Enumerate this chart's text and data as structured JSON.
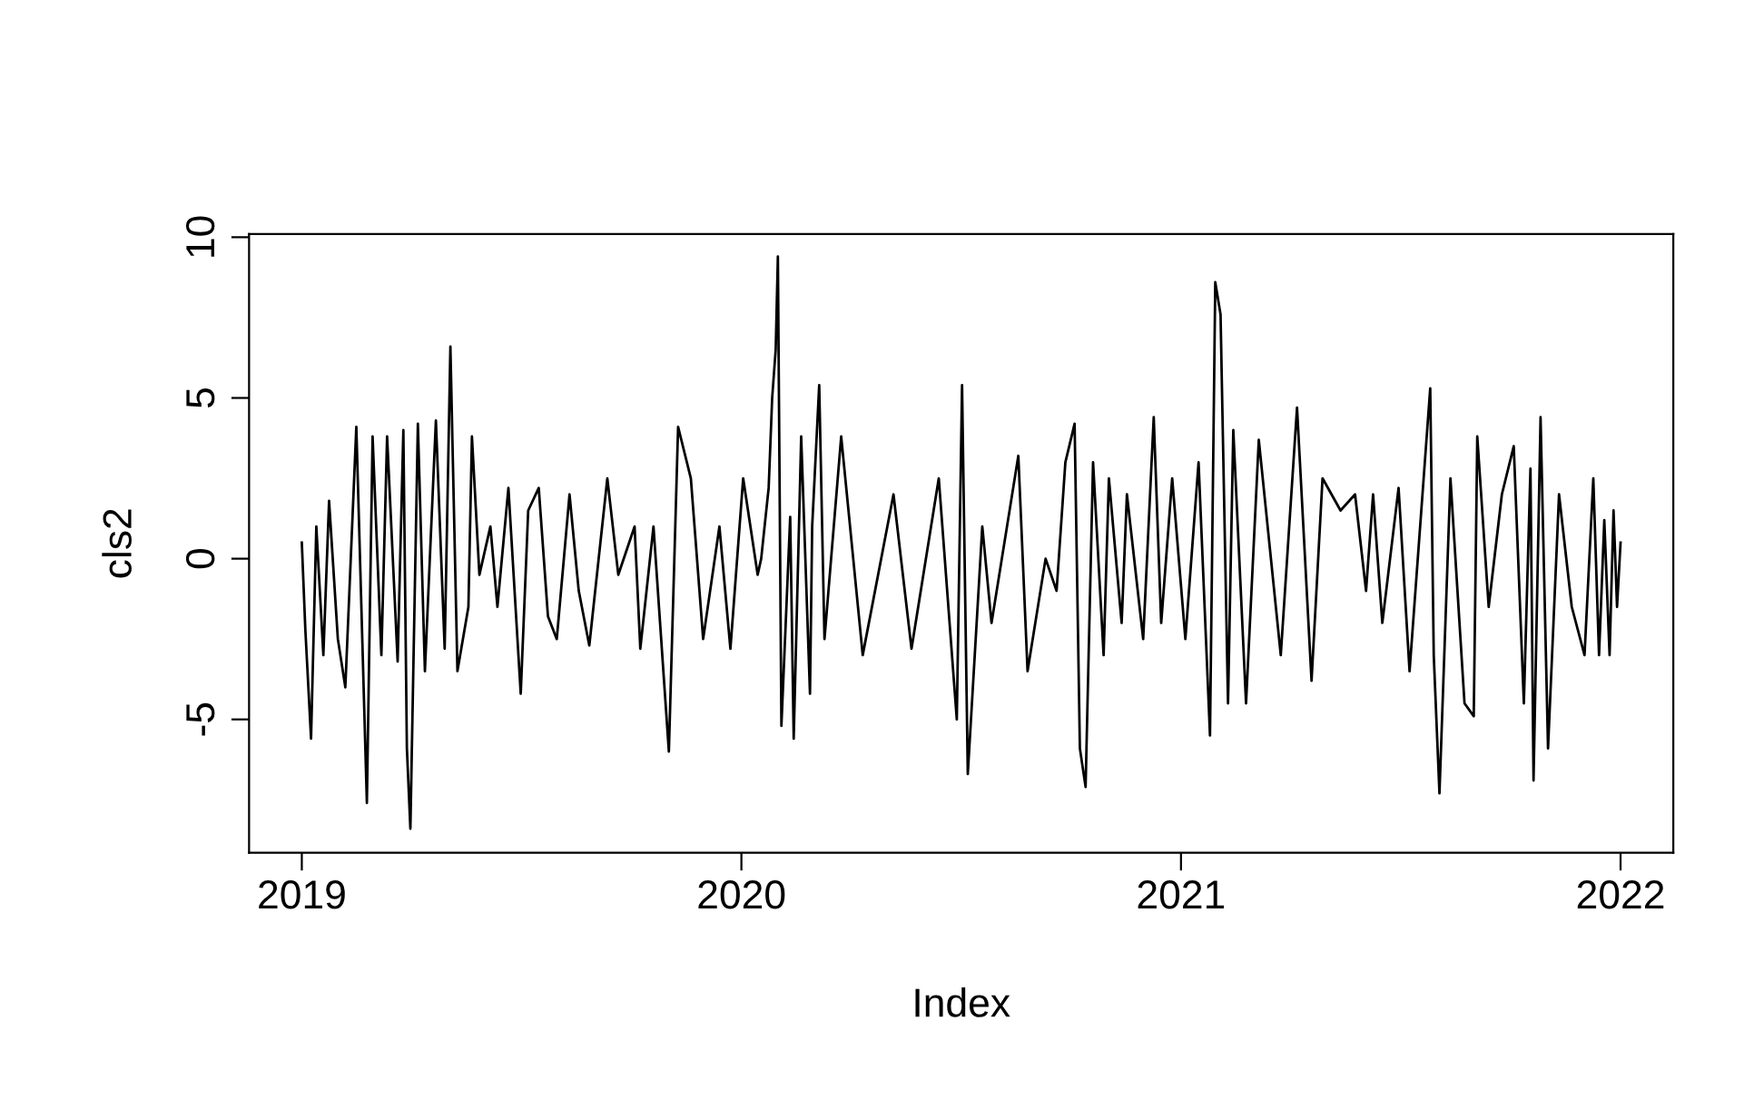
{
  "chart_data": {
    "type": "line",
    "xlabel": "Index",
    "ylabel": "cls2",
    "xlim": [
      2018.88,
      2022.12
    ],
    "ylim": [
      -9.15,
      10.1
    ],
    "xticks": [
      2019,
      2020,
      2021,
      2022
    ],
    "yticks": [
      -5,
      0,
      5,
      10
    ],
    "grid": false,
    "marker": "none",
    "line_style": "solid",
    "series": [
      {
        "color": "#000000",
        "x": [
          2019.0,
          2019.008,
          2019.021,
          2019.033,
          2019.049,
          2019.062,
          2019.082,
          2019.099,
          2019.124,
          2019.148,
          2019.161,
          2019.181,
          2019.194,
          2019.218,
          2019.231,
          2019.239,
          2019.247,
          2019.264,
          2019.28,
          2019.305,
          2019.325,
          2019.338,
          2019.354,
          2019.379,
          2019.387,
          2019.404,
          2019.429,
          2019.445,
          2019.47,
          2019.498,
          2019.515,
          2019.539,
          2019.56,
          2019.58,
          2019.609,
          2019.63,
          2019.654,
          2019.695,
          2019.72,
          2019.757,
          2019.77,
          2019.8,
          2019.835,
          2019.856,
          2019.885,
          2019.913,
          2019.95,
          2019.975,
          2020.004,
          2020.037,
          2020.045,
          2020.062,
          2020.07,
          2020.078,
          2020.083,
          2020.091,
          2020.111,
          2020.119,
          2020.136,
          2020.156,
          2020.161,
          2020.177,
          2020.189,
          2020.227,
          2020.276,
          2020.346,
          2020.387,
          2020.449,
          2020.49,
          2020.502,
          2020.515,
          2020.548,
          2020.569,
          2020.63,
          2020.651,
          2020.692,
          2020.717,
          2020.737,
          2020.758,
          2020.77,
          2020.783,
          2020.8,
          2020.824,
          2020.836,
          2020.865,
          2020.877,
          2020.914,
          2020.938,
          2020.955,
          2020.98,
          2021.01,
          2021.04,
          2021.066,
          2021.078,
          2021.09,
          2021.107,
          2021.119,
          2021.148,
          2021.177,
          2021.227,
          2021.264,
          2021.297,
          2021.322,
          2021.363,
          2021.396,
          2021.421,
          2021.437,
          2021.458,
          2021.495,
          2021.52,
          2021.567,
          2021.575,
          2021.588,
          2021.613,
          2021.645,
          2021.666,
          2021.674,
          2021.7,
          2021.73,
          2021.757,
          2021.78,
          2021.795,
          2021.802,
          2021.818,
          2021.835,
          2021.86,
          2021.889,
          2021.918,
          2021.938,
          2021.951,
          2021.963,
          2021.975,
          2021.984,
          2021.992,
          2022.0
        ],
        "values": [
          0.5,
          -2.2,
          -5.6,
          1.0,
          -3.0,
          1.8,
          -2.5,
          -4.0,
          4.1,
          -7.6,
          3.8,
          -3.0,
          3.8,
          -3.2,
          4.0,
          -5.9,
          -8.4,
          4.2,
          -3.5,
          4.3,
          -2.8,
          6.6,
          -3.5,
          -1.5,
          3.8,
          -0.5,
          1.0,
          -1.5,
          2.2,
          -4.2,
          1.5,
          2.2,
          -1.8,
          -2.5,
          2.0,
          -1.0,
          -2.7,
          2.5,
          -0.5,
          1.0,
          -2.8,
          1.0,
          -6.0,
          4.1,
          2.5,
          -2.5,
          1.0,
          -2.8,
          2.5,
          -0.5,
          0.0,
          2.2,
          5.0,
          6.5,
          9.4,
          -5.2,
          1.3,
          -5.6,
          3.8,
          -4.2,
          1.0,
          5.4,
          -2.5,
          3.8,
          -3.0,
          2.0,
          -2.8,
          2.5,
          -5.0,
          5.4,
          -6.7,
          1.0,
          -2.0,
          3.2,
          -3.5,
          0.0,
          -1.0,
          3.0,
          4.2,
          -5.9,
          -7.1,
          3.0,
          -3.0,
          2.5,
          -2.0,
          2.0,
          -2.5,
          4.4,
          -2.0,
          2.5,
          -2.5,
          3.0,
          -5.5,
          8.6,
          7.6,
          -4.5,
          4.0,
          -4.5,
          3.7,
          -3.0,
          4.7,
          -3.8,
          2.5,
          1.5,
          2.0,
          -1.0,
          2.0,
          -2.0,
          2.2,
          -3.5,
          5.3,
          -3.0,
          -7.3,
          2.5,
          -4.5,
          -4.9,
          3.8,
          -1.5,
          2.0,
          3.5,
          -4.5,
          2.8,
          -6.9,
          4.4,
          -5.9,
          2.0,
          -1.5,
          -3.0,
          2.5,
          -3.0,
          1.2,
          -3.0,
          1.5,
          -1.5,
          0.5
        ]
      }
    ]
  }
}
